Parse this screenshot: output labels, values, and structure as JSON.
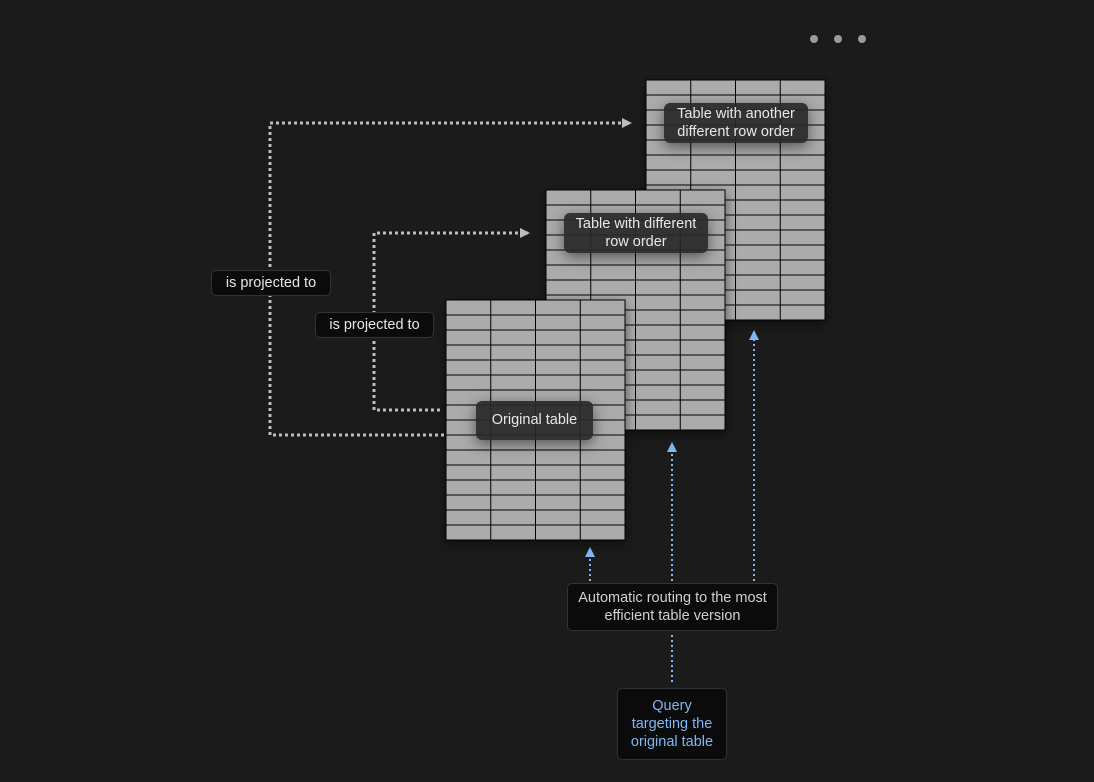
{
  "menu": {
    "icon": "more-horizontal-icon"
  },
  "tables": [
    {
      "label": "Table with another different row order"
    },
    {
      "label": "Table with different row order"
    },
    {
      "label": "Original table"
    }
  ],
  "edges": {
    "projected_outer": "is projected to",
    "projected_inner": "is projected to"
  },
  "routing_label": "Automatic routing to the most efficient table version",
  "query_label": "Query targeting the original table",
  "colors": {
    "background": "#1b1b1b",
    "table_fill": "#ababab",
    "connector": "#bdbdbd",
    "query": "#7fb6f5"
  }
}
